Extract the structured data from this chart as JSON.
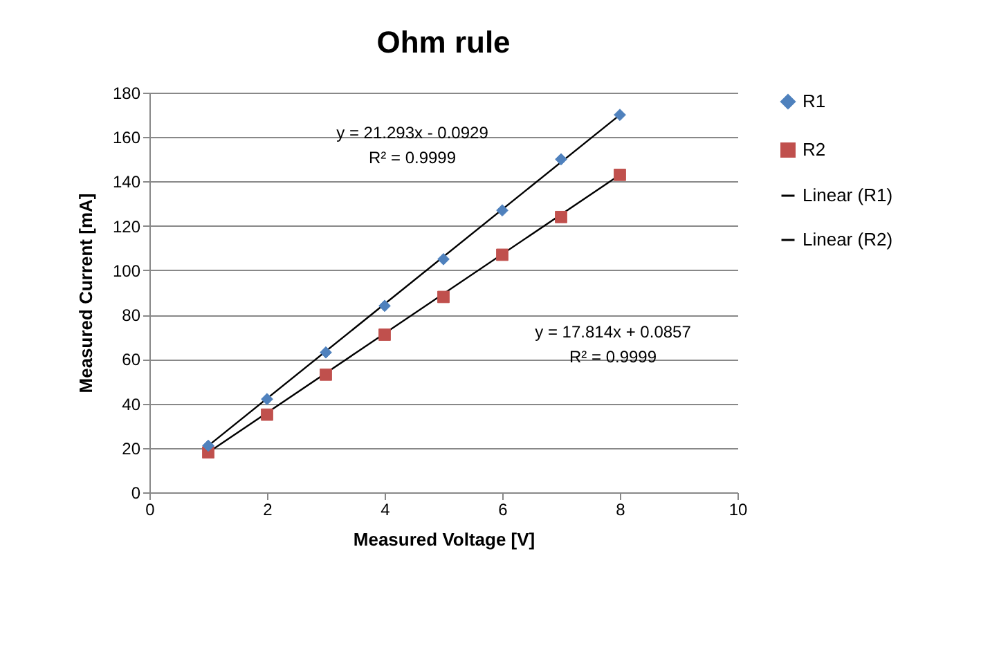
{
  "chart_data": {
    "type": "scatter",
    "title": "Ohm rule",
    "xlabel": "Measured Voltage [V]",
    "ylabel": "Measured Current [mA]",
    "annotations": [
      "y = 21.293x - 0.0929\nR² = 0.9999",
      "y = 17.814x + 0.0857\nR² = 0.9999"
    ],
    "series": [
      {
        "name": "R1",
        "marker": "diamond",
        "color": "#4f81bd",
        "x": [
          1,
          2,
          3,
          4,
          5,
          6,
          7,
          8
        ],
        "values": [
          21,
          42,
          63,
          84,
          105,
          127,
          150,
          170
        ]
      },
      {
        "name": "R2",
        "marker": "square",
        "color": "#c0504d",
        "x": [
          1,
          2,
          3,
          4,
          5,
          6,
          7,
          8
        ],
        "values": [
          18,
          35,
          53,
          71,
          88,
          107,
          124,
          143
        ]
      },
      {
        "name": "Linear (R1)",
        "type": "line",
        "marker": "none",
        "color": "#000000",
        "x": [
          1,
          8
        ],
        "values": [
          21,
          170
        ]
      },
      {
        "name": "Linear (R2)",
        "type": "line",
        "marker": "none",
        "color": "#000000",
        "x": [
          1,
          8
        ],
        "values": [
          18,
          143
        ]
      }
    ],
    "xlim": [
      0,
      10
    ],
    "xticks": [
      0,
      2,
      4,
      6,
      8,
      10
    ],
    "ylim": [
      0,
      180
    ],
    "yticks": [
      0,
      20,
      40,
      60,
      80,
      100,
      120,
      140,
      160,
      180
    ],
    "grid": "y",
    "legend": "right"
  }
}
